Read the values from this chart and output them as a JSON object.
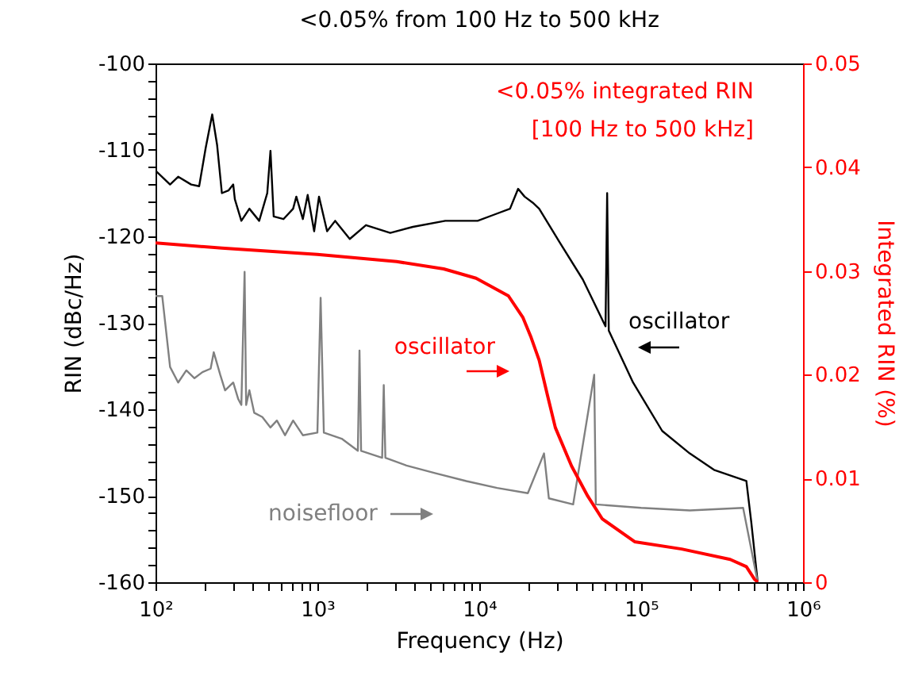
{
  "chart_data": {
    "type": "line",
    "title": "<0.05% from 100 Hz to 500 kHz",
    "xlabel": "Frequency (Hz)",
    "ylabel": "RIN (dBc/Hz)",
    "y2label": "Integrated RIN (%)",
    "log": "x",
    "grid": false,
    "marker": "none",
    "line_style": "solid",
    "xlim": [
      100,
      1000000
    ],
    "xticks": [
      {
        "value": 100,
        "label": "10²"
      },
      {
        "value": 200,
        "label": null
      },
      {
        "value": 300,
        "label": null
      },
      {
        "value": 400,
        "label": null
      },
      {
        "value": 500,
        "label": null
      },
      {
        "value": 600,
        "label": null
      },
      {
        "value": 700,
        "label": null
      },
      {
        "value": 800,
        "label": null
      },
      {
        "value": 900,
        "label": null
      },
      {
        "value": 1000,
        "label": "10³"
      },
      {
        "value": 2000,
        "label": null
      },
      {
        "value": 3000,
        "label": null
      },
      {
        "value": 4000,
        "label": null
      },
      {
        "value": 5000,
        "label": null
      },
      {
        "value": 6000,
        "label": null
      },
      {
        "value": 7000,
        "label": null
      },
      {
        "value": 8000,
        "label": null
      },
      {
        "value": 9000,
        "label": null
      },
      {
        "value": 10000,
        "label": "10⁴"
      },
      {
        "value": 20000,
        "label": null
      },
      {
        "value": 30000,
        "label": null
      },
      {
        "value": 40000,
        "label": null
      },
      {
        "value": 50000,
        "label": null
      },
      {
        "value": 60000,
        "label": null
      },
      {
        "value": 70000,
        "label": null
      },
      {
        "value": 80000,
        "label": null
      },
      {
        "value": 90000,
        "label": null
      },
      {
        "value": 100000,
        "label": "10⁵"
      },
      {
        "value": 200000,
        "label": null
      },
      {
        "value": 300000,
        "label": null
      },
      {
        "value": 400000,
        "label": null
      },
      {
        "value": 500000,
        "label": null
      },
      {
        "value": 600000,
        "label": null
      },
      {
        "value": 700000,
        "label": null
      },
      {
        "value": 800000,
        "label": null
      },
      {
        "value": 900000,
        "label": null
      },
      {
        "value": 1000000,
        "label": "10⁶"
      }
    ],
    "ylim": [
      -160,
      -100
    ],
    "yticks": [
      -100,
      {
        "value": -102,
        "label": null
      },
      {
        "value": -104,
        "label": null
      },
      {
        "value": -106,
        "label": null
      },
      {
        "value": -108,
        "label": null
      },
      -110,
      {
        "value": -112,
        "label": null
      },
      {
        "value": -114,
        "label": null
      },
      {
        "value": -116,
        "label": null
      },
      {
        "value": -118,
        "label": null
      },
      -120,
      {
        "value": -122,
        "label": null
      },
      {
        "value": -124,
        "label": null
      },
      {
        "value": -126,
        "label": null
      },
      {
        "value": -128,
        "label": null
      },
      -130,
      {
        "value": -132,
        "label": null
      },
      {
        "value": -134,
        "label": null
      },
      {
        "value": -136,
        "label": null
      },
      {
        "value": -138,
        "label": null
      },
      -140,
      {
        "value": -142,
        "label": null
      },
      {
        "value": -144,
        "label": null
      },
      {
        "value": -146,
        "label": null
      },
      {
        "value": -148,
        "label": null
      },
      -150,
      {
        "value": -152,
        "label": null
      },
      {
        "value": -154,
        "label": null
      },
      {
        "value": -156,
        "label": null
      },
      {
        "value": -158,
        "label": null
      },
      -160
    ],
    "y2lim": [
      0,
      0.05
    ],
    "y2ticks": [
      0,
      0.01,
      0.02,
      0.03,
      0.04,
      0.05
    ],
    "series": [
      {
        "color": "#000000",
        "x": [
          100,
          123,
          138,
          166,
          186,
          204,
          224,
          240,
          257,
          282,
          302,
          309,
          339,
          380,
          437,
          490,
          513,
          537,
          617,
          708,
          741,
          813,
          871,
          955,
          1023,
          1148,
          1288,
          1585,
          1995,
          2818,
          3890,
          6166,
          9772,
          12303,
          15488,
          17378,
          19055,
          21380,
          23442,
          31623,
          43652,
          60256,
          61660,
          63096,
          89125,
          134896,
          199526,
          281838,
          446684,
          478630,
          524807
        ],
        "values": [
          -112.4,
          -114.0,
          -113.1,
          -114.0,
          -114.2,
          -109.8,
          -105.9,
          -109.4,
          -115.0,
          -114.7,
          -114.0,
          -115.7,
          -118.2,
          -116.8,
          -118.2,
          -115.0,
          -110.1,
          -117.7,
          -118.0,
          -116.8,
          -115.4,
          -118.0,
          -115.2,
          -119.4,
          -115.4,
          -119.4,
          -118.2,
          -120.3,
          -118.7,
          -119.6,
          -118.9,
          -118.2,
          -118.2,
          -117.5,
          -116.8,
          -114.5,
          -115.4,
          -116.1,
          -116.8,
          -120.8,
          -125.0,
          -130.4,
          -115.0,
          -130.9,
          -136.9,
          -142.5,
          -145.1,
          -147.0,
          -148.3,
          -153.0,
          -160.0
        ]
      },
      {
        "color": "#808080",
        "x": [
          100,
          110,
          123,
          138,
          155,
          174,
          195,
          219,
          229,
          251,
          269,
          302,
          324,
          339,
          355,
          363,
          380,
          407,
          457,
          513,
          562,
          631,
          708,
          813,
          1000,
          1047,
          1096,
          1413,
          1778,
          1820,
          1862,
          2512,
          2570,
          2630,
          3548,
          5370,
          8318,
          12882,
          19953,
          25119,
          26915,
          38019,
          51286,
          52481,
          100000,
          200000,
          426580,
          467735,
          524807
        ],
        "values": [
          -126.9,
          -126.9,
          -135.1,
          -136.9,
          -135.5,
          -136.4,
          -135.7,
          -135.3,
          -133.4,
          -136.0,
          -137.8,
          -136.9,
          -138.8,
          -139.5,
          -124.1,
          -139.5,
          -137.8,
          -140.4,
          -140.9,
          -142.1,
          -141.3,
          -143.0,
          -141.3,
          -143.0,
          -142.7,
          -127.1,
          -142.7,
          -143.4,
          -144.8,
          -133.2,
          -144.8,
          -145.6,
          -137.2,
          -145.6,
          -146.5,
          -147.4,
          -148.3,
          -149.1,
          -149.7,
          -145.1,
          -150.3,
          -151.0,
          -136.0,
          -151.0,
          -151.4,
          -151.7,
          -151.4,
          -155.2,
          -160.0
        ]
      },
      {
        "color": "#ff0000",
        "axis": "y2",
        "x": [
          100,
          257,
          1000,
          3090,
          6026,
          9550,
          15136,
          18621,
          20893,
          23442,
          26303,
          29512,
          37154,
          46774,
          57544,
          91201,
          177828,
          354813,
          446684,
          501187,
          524807
        ],
        "values": [
          0.0327,
          0.0322,
          0.0316,
          0.0309,
          0.0302,
          0.0293,
          0.0276,
          0.0255,
          0.0236,
          0.0214,
          0.0181,
          0.0149,
          0.0112,
          0.0083,
          0.0061,
          0.0039,
          0.0032,
          0.0022,
          0.0015,
          0.0003,
          0
        ]
      }
    ],
    "annotations": [
      "<0.05% integrated RIN\n[100 Hz to 500 kHz]",
      "oscillator",
      "oscillator",
      "noisefloor"
    ]
  }
}
